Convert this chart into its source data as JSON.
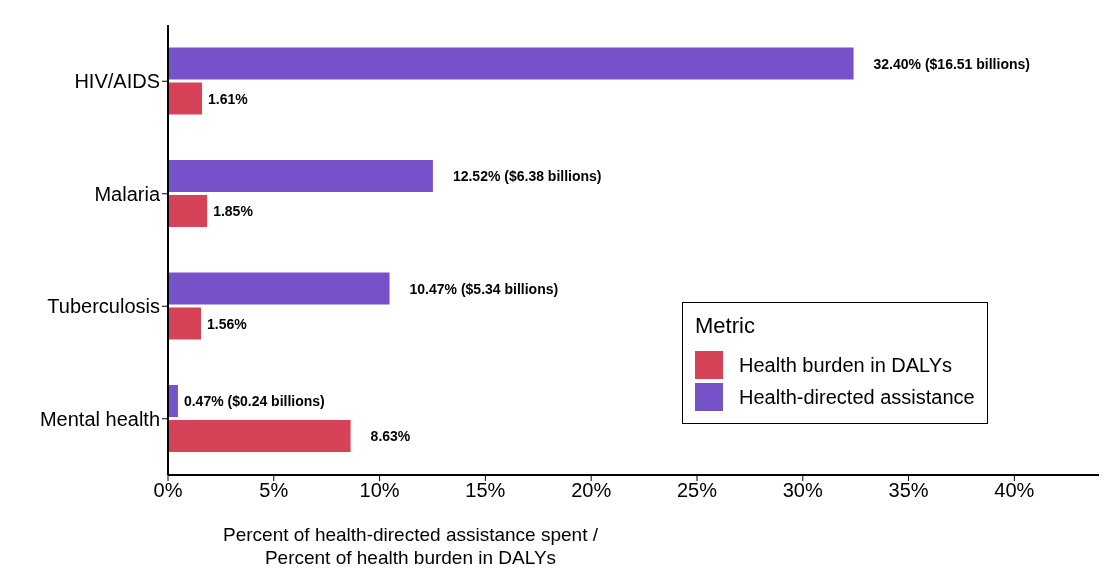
{
  "chart_data": {
    "type": "bar",
    "orientation": "horizontal",
    "categories": [
      "HIV/AIDS",
      "Malaria",
      "Tuberculosis",
      "Mental health"
    ],
    "series": [
      {
        "name": "Health burden in DALYs",
        "color": "#d64257",
        "values": [
          1.61,
          1.85,
          1.56,
          8.63
        ],
        "value_labels": [
          "1.61%",
          "1.85%",
          "1.56%",
          "8.63%"
        ]
      },
      {
        "name": "Health-directed assistance",
        "color": "#7552c8",
        "values": [
          32.4,
          12.52,
          10.47,
          0.47
        ],
        "value_labels": [
          "32.40% ($16.51 billions)",
          "12.52% ($6.38 billions)",
          "10.47% ($5.34 billions)",
          "0.47% ($0.24 billions)"
        ]
      }
    ],
    "xlim": [
      0,
      44
    ],
    "xticks": [
      {
        "value": 0,
        "label": "0%"
      },
      {
        "value": 5,
        "label": "5%"
      },
      {
        "value": 10,
        "label": "10%"
      },
      {
        "value": 15,
        "label": "15%"
      },
      {
        "value": 20,
        "label": "20%"
      },
      {
        "value": 25,
        "label": "25%"
      },
      {
        "value": 30,
        "label": "30%"
      },
      {
        "value": 35,
        "label": "35%"
      },
      {
        "value": 40,
        "label": "40%"
      }
    ],
    "xlabel": "Percent of health-directed assistance spent /\nPercent of health burden in DALYs",
    "legend": "bottom right",
    "legend_title": "Metric",
    "grid": false
  }
}
